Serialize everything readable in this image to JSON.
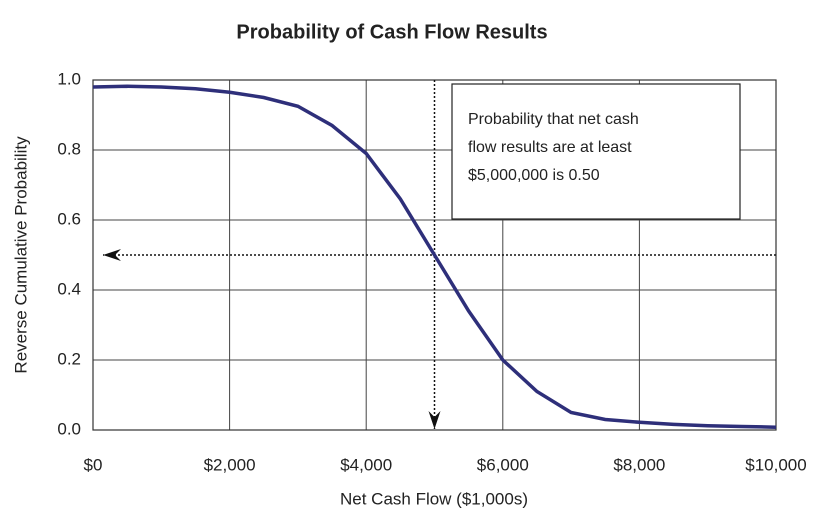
{
  "chart_data": {
    "type": "line",
    "title": "Probability of Cash Flow Results",
    "x_label": "Net Cash Flow ($1,000s)",
    "y_label": "Reverse Cumulative Probability",
    "x": [
      0,
      500,
      1000,
      1500,
      2000,
      2500,
      3000,
      3500,
      4000,
      4500,
      5000,
      5500,
      6000,
      6500,
      7000,
      7500,
      8000,
      8500,
      9000,
      9500,
      10000
    ],
    "series": [
      {
        "color": "#2e2f7a",
        "values": [
          0.98,
          0.982,
          0.98,
          0.975,
          0.965,
          0.95,
          0.925,
          0.87,
          0.79,
          0.66,
          0.5,
          0.34,
          0.2,
          0.11,
          0.05,
          0.03,
          0.022,
          0.016,
          0.012,
          0.01,
          0.008
        ]
      }
    ],
    "xlim": [
      0,
      10000
    ],
    "xticks": [
      {
        "value": 0,
        "label": "$0"
      },
      {
        "value": 2000,
        "label": "$2,000"
      },
      {
        "value": 4000,
        "label": "$4,000"
      },
      {
        "value": 6000,
        "label": "$6,000"
      },
      {
        "value": 8000,
        "label": "$8,000"
      },
      {
        "value": 10000,
        "label": "$10,000"
      }
    ],
    "ylim": [
      0,
      1
    ],
    "yticks": [
      {
        "value": 0,
        "label": "0.0"
      },
      0.2,
      0.4,
      0.6,
      0.8,
      {
        "value": 1,
        "label": "1.0"
      }
    ],
    "grid": true,
    "reference": {
      "x": 5000,
      "y": 0.5
    },
    "annotation": [
      "Probability that net cash",
      "flow results are at least",
      "$5,000,000 is 0.50"
    ]
  }
}
